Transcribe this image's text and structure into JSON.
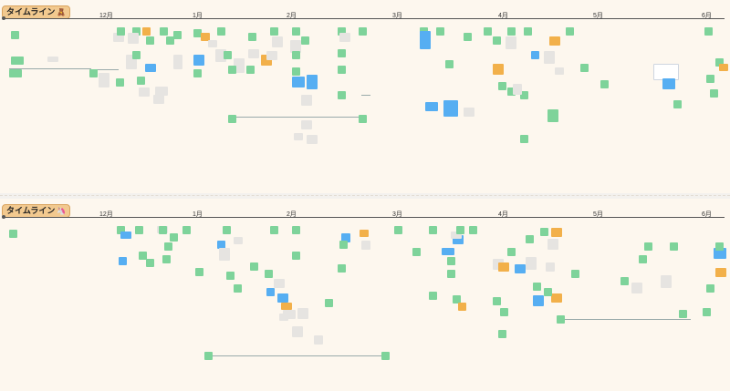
{
  "timelines": [
    {
      "title": "タイムライン",
      "emoji": "🧸",
      "months": [
        "12月",
        "1月",
        "2月",
        "3月",
        "4月",
        "5月",
        "6月"
      ]
    },
    {
      "title": "タイムライン",
      "emoji": "🦄",
      "months": [
        "12月",
        "1月",
        "2月",
        "3月",
        "4月",
        "5月",
        "6月"
      ]
    }
  ],
  "colors": {
    "green": "#7ed39a",
    "orange": "#f2b04a",
    "blue": "#56aef2",
    "grey": "#e6e4e1",
    "badge": "#f2c98f",
    "background": "#fdf7ee"
  }
}
